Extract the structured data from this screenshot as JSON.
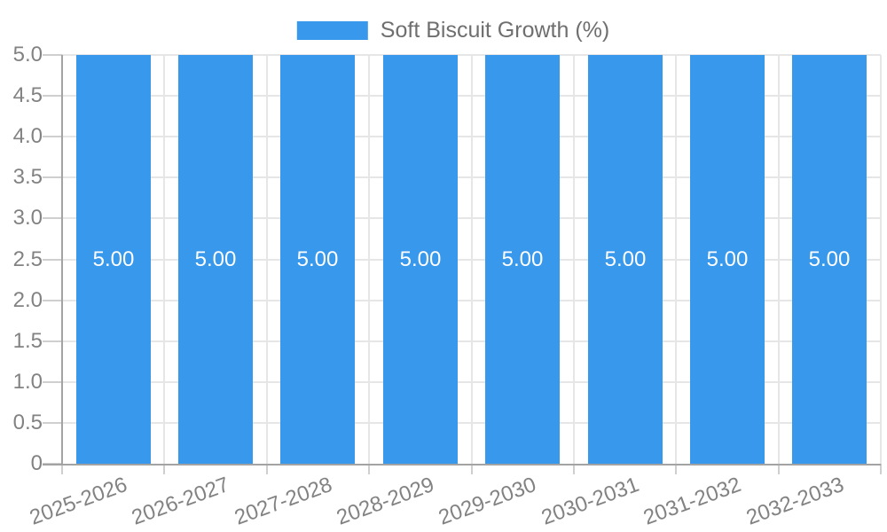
{
  "legend": {
    "label": "Soft Biscuit Growth (%)"
  },
  "colors": {
    "bar": "#3898EC",
    "grid": "#E6E6E6",
    "axis": "#A3A3A3",
    "tick": "#CFCFCF",
    "axis_text": "#828282",
    "legend_text": "#6F6F6F",
    "value_text": "#FFFFFF"
  },
  "chart_data": {
    "type": "bar",
    "title": "",
    "xlabel": "",
    "ylabel": "",
    "categories": [
      "2025-2026",
      "2026-2027",
      "2027-2028",
      "2028-2029",
      "2029-2030",
      "2030-2031",
      "2031-2032",
      "2032-2033"
    ],
    "series": [
      {
        "name": "Soft Biscuit Growth (%)",
        "values": [
          5.0,
          5.0,
          5.0,
          5.0,
          5.0,
          5.0,
          5.0,
          5.0
        ]
      }
    ],
    "value_label_decimals": 2,
    "ylim": [
      0,
      5
    ],
    "ytick_labels": [
      "0",
      "0.5",
      "1.0",
      "1.5",
      "2.0",
      "2.5",
      "3.0",
      "3.5",
      "4.0",
      "4.5",
      "5.0"
    ],
    "grid": true,
    "legend_position": "top-center",
    "x_label_rotation_deg": -20
  }
}
